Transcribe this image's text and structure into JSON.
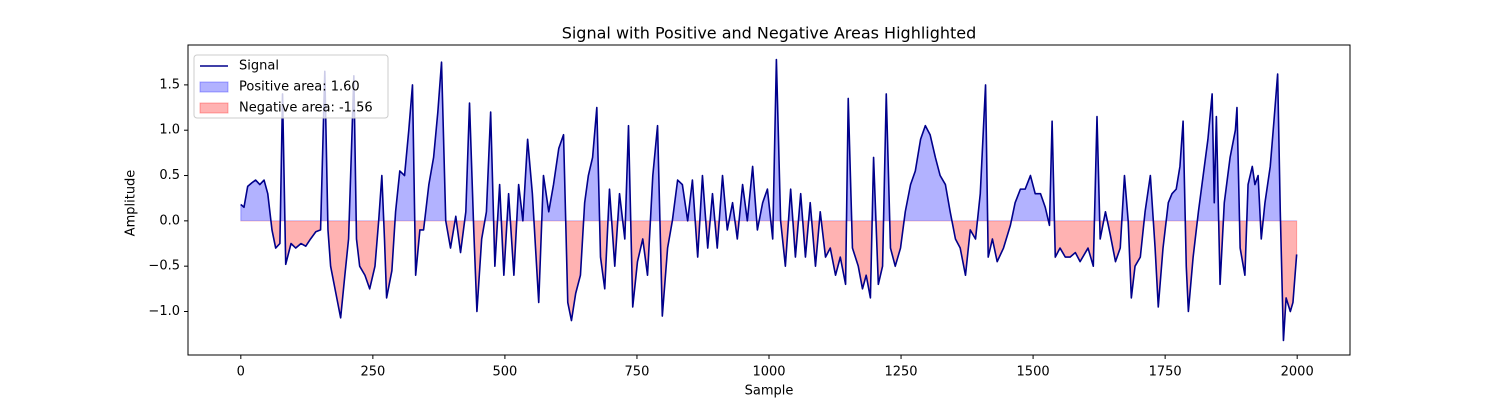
{
  "chart_data": {
    "type": "line",
    "title": "Signal with Positive and Negative Areas Highlighted",
    "xlabel": "Sample",
    "ylabel": "Amplitude",
    "xlim": [
      -100,
      2100
    ],
    "ylim": [
      -1.48,
      1.94
    ],
    "xticks": [
      0,
      250,
      500,
      750,
      1000,
      1250,
      1500,
      1750,
      2000
    ],
    "yticks": [
      {
        "value": -1,
        "label": "−1.0"
      },
      {
        "value": -0.5,
        "label": "−0.5"
      },
      {
        "value": 0,
        "label": "0.0"
      },
      0.5,
      {
        "value": 1,
        "label": "1.0"
      },
      1.5
    ],
    "legend": "upper left",
    "fills": [
      {
        "name": "Positive area: 1.60",
        "color": "#0000ff",
        "alpha": 0.3
      },
      {
        "name": "Negative area: -1.56",
        "color": "#ff0000",
        "alpha": 0.3
      }
    ],
    "series": [
      {
        "name": "Signal",
        "color": "#00008b",
        "x": [
          0,
          6,
          13,
          21,
          28,
          36,
          44,
          51,
          59,
          66,
          74,
          79,
          85,
          95,
          104,
          114,
          123,
          132,
          142,
          151,
          159,
          165,
          170,
          180,
          189,
          197,
          204,
          214,
          219,
          225,
          235,
          244,
          254,
          261,
          267,
          272,
          276,
          286,
          293,
          301,
          310,
          318,
          325,
          331,
          339,
          346,
          356,
          365,
          373,
          380,
          388,
          397,
          407,
          416,
          426,
          433,
          441,
          447,
          456,
          465,
          473,
          481,
          490,
          498,
          507,
          517,
          526,
          534,
          543,
          552,
          564,
          573,
          583,
          592,
          602,
          611,
          619,
          626,
          634,
          643,
          651,
          658,
          666,
          674,
          681,
          689,
          698,
          708,
          717,
          727,
          734,
          742,
          751,
          761,
          770,
          780,
          789,
          798,
          808,
          817,
          827,
          836,
          846,
          855,
          865,
          874,
          884,
          893,
          902,
          912,
          921,
          931,
          940,
          950,
          959,
          969,
          978,
          988,
          997,
          1007,
          1014,
          1022,
          1031,
          1041,
          1050,
          1060,
          1069,
          1078,
          1088,
          1097,
          1107,
          1116,
          1126,
          1135,
          1145,
          1150,
          1158,
          1169,
          1177,
          1184,
          1192,
          1198,
          1207,
          1215,
          1222,
          1230,
          1239,
          1249,
          1258,
          1268,
          1277,
          1287,
          1296,
          1305,
          1315,
          1324,
          1334,
          1343,
          1353,
          1362,
          1372,
          1381,
          1391,
          1400,
          1410,
          1415,
          1423,
          1432,
          1444,
          1457,
          1466,
          1476,
          1485,
          1495,
          1504,
          1514,
          1523,
          1531,
          1536,
          1542,
          1551,
          1561,
          1570,
          1580,
          1589,
          1604,
          1614,
          1621,
          1627,
          1637,
          1646,
          1656,
          1665,
          1673,
          1680,
          1686,
          1693,
          1703,
          1712,
          1722,
          1731,
          1737,
          1746,
          1756,
          1763,
          1771,
          1778,
          1784,
          1790,
          1794,
          1803,
          1813,
          1822,
          1831,
          1839,
          1843,
          1847,
          1854,
          1862,
          1873,
          1883,
          1886,
          1892,
          1901,
          1907,
          1915,
          1920,
          1926,
          1932,
          1939,
          1949,
          1956,
          1963,
          1968,
          1974,
          1979,
          1987,
          1992,
          1999
        ],
        "values": [
          0.18,
          0.15,
          0.38,
          0.42,
          0.45,
          0.4,
          0.45,
          0.3,
          -0.1,
          -0.3,
          -0.25,
          1.4,
          -0.48,
          -0.25,
          -0.3,
          -0.25,
          -0.28,
          -0.2,
          -0.12,
          -0.1,
          1.65,
          -0.1,
          -0.5,
          -0.8,
          -1.07,
          -0.6,
          -0.2,
          1.6,
          -0.2,
          -0.5,
          -0.6,
          -0.75,
          -0.5,
          0.0,
          0.5,
          -0.2,
          -0.85,
          -0.55,
          0.1,
          0.55,
          0.5,
          1.0,
          1.5,
          -0.6,
          -0.1,
          -0.1,
          0.4,
          0.7,
          1.2,
          1.75,
          0.0,
          -0.3,
          0.05,
          -0.35,
          0.1,
          1.3,
          -0.1,
          -1.0,
          -0.2,
          0.1,
          1.2,
          -0.5,
          0.4,
          -0.6,
          0.3,
          -0.6,
          0.4,
          0.0,
          0.9,
          0.3,
          -0.9,
          0.5,
          0.1,
          0.4,
          0.8,
          0.95,
          -0.9,
          -1.1,
          -0.8,
          -0.6,
          0.2,
          0.5,
          0.7,
          1.25,
          -0.4,
          -0.75,
          0.35,
          -0.5,
          0.3,
          -0.2,
          1.05,
          -0.95,
          -0.45,
          -0.2,
          -0.6,
          0.5,
          1.05,
          -1.05,
          -0.3,
          0.0,
          0.45,
          0.4,
          0.0,
          0.45,
          -0.4,
          0.5,
          -0.3,
          0.3,
          -0.3,
          0.5,
          -0.1,
          0.2,
          -0.2,
          0.4,
          0.0,
          0.6,
          -0.1,
          0.2,
          0.35,
          -0.2,
          1.78,
          0.0,
          -0.5,
          0.35,
          -0.4,
          0.3,
          -0.4,
          0.2,
          -0.5,
          0.1,
          -0.4,
          -0.3,
          -0.6,
          -0.4,
          -0.7,
          1.35,
          -0.3,
          -0.5,
          -0.75,
          -0.6,
          -0.85,
          0.7,
          -0.7,
          -0.5,
          1.4,
          -0.3,
          -0.5,
          -0.3,
          0.1,
          0.4,
          0.55,
          0.9,
          1.05,
          0.95,
          0.7,
          0.5,
          0.4,
          0.1,
          -0.2,
          -0.3,
          -0.6,
          -0.1,
          -0.2,
          0.3,
          1.5,
          -0.4,
          -0.2,
          -0.45,
          -0.3,
          -0.05,
          0.2,
          0.35,
          0.35,
          0.5,
          0.3,
          0.3,
          0.15,
          -0.05,
          1.1,
          -0.4,
          -0.3,
          -0.4,
          -0.4,
          -0.35,
          -0.45,
          -0.3,
          -0.5,
          1.15,
          -0.2,
          0.1,
          -0.15,
          -0.45,
          -0.3,
          0.5,
          0.0,
          -0.85,
          -0.5,
          -0.4,
          0.1,
          0.5,
          -0.3,
          -0.95,
          -0.3,
          0.2,
          0.3,
          0.35,
          0.6,
          1.1,
          -0.5,
          -1.0,
          -0.4,
          0.1,
          0.5,
          0.9,
          1.4,
          0.2,
          1.15,
          -0.7,
          0.2,
          0.7,
          1.0,
          1.25,
          -0.3,
          -0.6,
          0.4,
          0.6,
          0.4,
          0.5,
          -0.2,
          0.2,
          0.6,
          1.1,
          1.62,
          0.1,
          -1.32,
          -0.85,
          -1.0,
          -0.9,
          -0.37
        ]
      }
    ]
  }
}
